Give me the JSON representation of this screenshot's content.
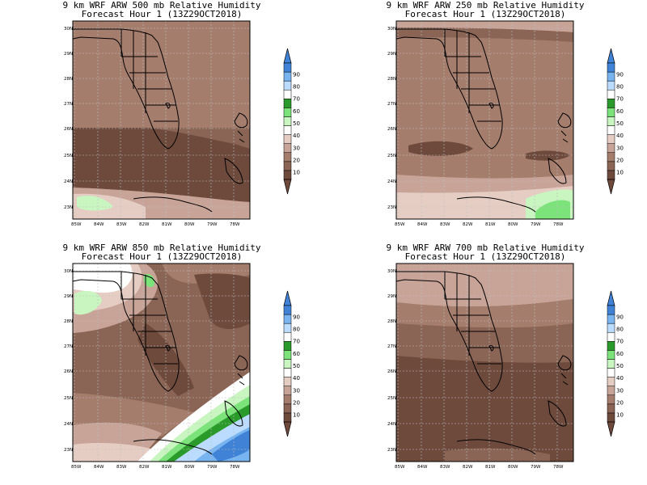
{
  "colors": {
    "land_outline": "#000000",
    "grid": "#bfbfbf",
    "legend_bins": [
      "#6e4a3d",
      "#8a6454",
      "#a57d6d",
      "#c8a498",
      "#e6cdc4",
      "#ffffff",
      "#c8f5c0",
      "#7be37a",
      "#2a9a2a",
      "#ffffff",
      "#bcdcff",
      "#78b4f0",
      "#3f82d6"
    ]
  },
  "legend_labels": [
    "10",
    "20",
    "30",
    "40",
    "50",
    "60",
    "70",
    "80",
    "90"
  ],
  "axes": {
    "lat_labels": [
      "30N",
      "29N",
      "28N",
      "27N",
      "26N",
      "25N",
      "24N",
      "23N"
    ],
    "lon_labels": [
      "85W",
      "84W",
      "83W",
      "82W",
      "81W",
      "80W",
      "79W",
      "78W"
    ]
  },
  "panels": [
    {
      "id": "500",
      "title1": "9 km WRF ARW 500 mb Relative Humidity",
      "title2": "Forecast Hour 1 (13Z29OCT2018)"
    },
    {
      "id": "250",
      "title1": "9 km WRF ARW 250 mb Relative Humidity",
      "title2": "Forecast Hour 1 (13Z29OCT2018)"
    },
    {
      "id": "850",
      "title1": "9 km WRF ARW 850 mb Relative Humidity",
      "title2": "Forecast Hour 1 (13Z29OCT2018)"
    },
    {
      "id": "700",
      "title1": "9 km WRF ARW 700 mb Relative Humidity",
      "title2": "Forecast Hour 1 (13Z29OCT2018)"
    }
  ]
}
